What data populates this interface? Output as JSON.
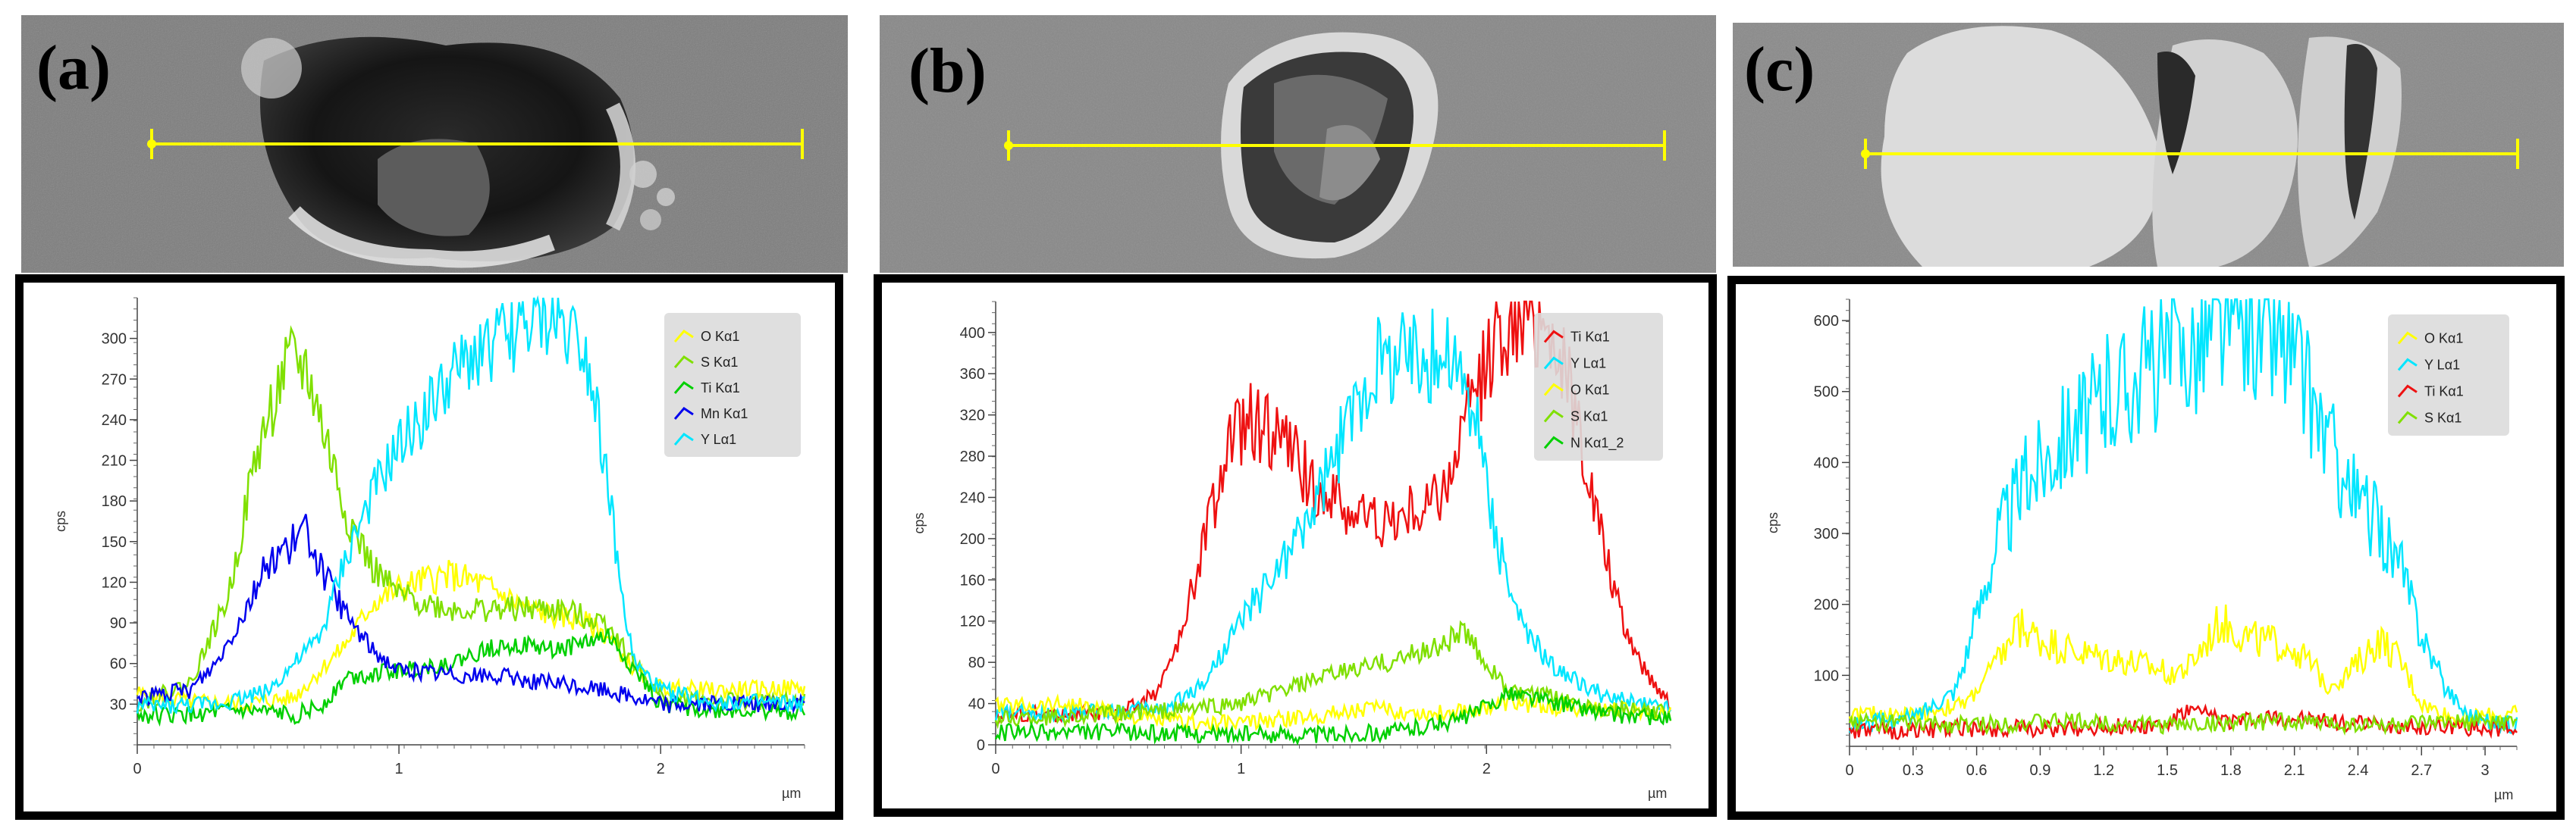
{
  "panels": [
    {
      "label": "(a)",
      "chart_data": {
        "type": "line",
        "xlabel": "µm",
        "ylabel": "cps",
        "xlim": [
          0,
          2.55
        ],
        "ylim": [
          0,
          330
        ],
        "xticks": [
          0,
          1,
          2
        ],
        "xtick_labels": [
          "0",
          "1",
          "2"
        ],
        "yticks": [
          30,
          60,
          90,
          120,
          150,
          180,
          210,
          240,
          270,
          300
        ],
        "ytick_labels": [
          "30",
          "60",
          "90",
          "120",
          "150",
          "180",
          "210",
          "240",
          "270",
          "300"
        ],
        "legend": [
          "O Kα1",
          "S Kα1",
          "Ti Kα1",
          "Mn Kα1",
          "Y Lα1"
        ],
        "legend_position": "top-right",
        "series": [
          {
            "name": "O Kα1",
            "color": "#ffff00",
            "x": [
              0,
              0.2,
              0.4,
              0.6,
              0.8,
              0.9,
              1.0,
              1.1,
              1.2,
              1.3,
              1.4,
              1.5,
              1.6,
              1.7,
              1.8,
              1.9,
              2.0,
              2.2,
              2.5
            ],
            "y": [
              38,
              32,
              30,
              35,
              75,
              105,
              115,
              122,
              125,
              120,
              110,
              100,
              95,
              92,
              80,
              55,
              42,
              40,
              42
            ]
          },
          {
            "name": "S Kα1",
            "color": "#80e000",
            "x": [
              0,
              0.2,
              0.35,
              0.45,
              0.55,
              0.6,
              0.65,
              0.7,
              0.8,
              0.9,
              1.0,
              1.2,
              1.4,
              1.6,
              1.8,
              1.9,
              2.0,
              2.2,
              2.5
            ],
            "y": [
              30,
              45,
              110,
              210,
              270,
              285,
              275,
              240,
              170,
              130,
              110,
              100,
              100,
              100,
              90,
              60,
              35,
              32,
              32
            ]
          },
          {
            "name": "Ti Kα1",
            "color": "#00d000",
            "x": [
              0,
              0.2,
              0.4,
              0.6,
              0.7,
              0.8,
              1.0,
              1.2,
              1.4,
              1.6,
              1.8,
              2.0,
              2.2,
              2.5
            ],
            "y": [
              22,
              22,
              25,
              22,
              28,
              50,
              55,
              60,
              75,
              70,
              80,
              30,
              25,
              25
            ]
          },
          {
            "name": "Mn Kα1",
            "color": "#0000ee",
            "x": [
              0,
              0.2,
              0.3,
              0.4,
              0.5,
              0.6,
              0.65,
              0.7,
              0.8,
              0.9,
              1.0,
              1.2,
              1.4,
              1.6,
              1.8,
              2.0,
              2.2,
              2.5
            ],
            "y": [
              35,
              40,
              60,
              95,
              135,
              150,
              158,
              130,
              95,
              70,
              55,
              52,
              50,
              45,
              40,
              30,
              30,
              30
            ]
          },
          {
            "name": "Y Lα1",
            "color": "#00e6ff",
            "x": [
              0,
              0.3,
              0.5,
              0.7,
              0.8,
              0.9,
              1.0,
              1.1,
              1.2,
              1.3,
              1.4,
              1.5,
              1.6,
              1.7,
              1.75,
              1.8,
              1.85,
              1.9,
              2.0,
              2.2,
              2.5
            ],
            "y": [
              28,
              30,
              40,
              80,
              140,
              185,
              220,
              245,
              270,
              290,
              300,
              310,
              315,
              300,
              260,
              190,
              110,
              60,
              40,
              32,
              30
            ]
          }
        ]
      }
    },
    {
      "label": "(b)",
      "chart_data": {
        "type": "line",
        "xlabel": "µm",
        "ylabel": "cps",
        "xlim": [
          0,
          2.75
        ],
        "ylim": [
          0,
          430
        ],
        "xticks": [
          0,
          1,
          2
        ],
        "xtick_labels": [
          "0",
          "1",
          "2"
        ],
        "yticks": [
          0,
          40,
          80,
          120,
          160,
          200,
          240,
          280,
          320,
          360,
          400
        ],
        "ytick_labels": [
          "0",
          "40",
          "80",
          "120",
          "160",
          "200",
          "240",
          "280",
          "320",
          "360",
          "400"
        ],
        "legend": [
          "Ti Kα1",
          "Y Lα1",
          "O Kα1",
          "S Kα1",
          "N Kα1_2"
        ],
        "legend_position": "top-right",
        "series": [
          {
            "name": "Ti Kα1",
            "color": "#ee1111",
            "x": [
              0,
              0.5,
              0.65,
              0.75,
              0.85,
              0.95,
              1.05,
              1.15,
              1.3,
              1.45,
              1.6,
              1.75,
              1.85,
              1.95,
              2.05,
              2.15,
              2.25,
              2.35,
              2.45,
              2.55,
              2.65,
              2.75
            ],
            "y": [
              30,
              30,
              50,
              100,
              200,
              290,
              315,
              300,
              250,
              225,
              215,
              230,
              260,
              340,
              400,
              420,
              410,
              340,
              220,
              120,
              70,
              40
            ]
          },
          {
            "name": "Y Lα1",
            "color": "#00e6ff",
            "x": [
              0,
              0.7,
              0.85,
              1.0,
              1.15,
              1.3,
              1.45,
              1.55,
              1.65,
              1.75,
              1.85,
              1.95,
              2.05,
              2.15,
              2.3,
              2.5,
              2.75
            ],
            "y": [
              30,
              35,
              60,
              120,
              170,
              230,
              320,
              370,
              380,
              375,
              380,
              320,
              190,
              110,
              70,
              45,
              35
            ]
          },
          {
            "name": "O Kα1",
            "color": "#ffff00",
            "x": [
              0,
              0.3,
              0.6,
              0.9,
              1.2,
              1.5,
              1.8,
              2.1,
              2.4,
              2.75
            ],
            "y": [
              38,
              40,
              25,
              20,
              25,
              35,
              30,
              40,
              35,
              32
            ]
          },
          {
            "name": "S Kα1",
            "color": "#80e000",
            "x": [
              0,
              0.5,
              0.8,
              1.0,
              1.2,
              1.4,
              1.6,
              1.8,
              1.9,
              2.0,
              2.1,
              2.3,
              2.5,
              2.75
            ],
            "y": [
              25,
              30,
              35,
              40,
              55,
              70,
              80,
              95,
              110,
              80,
              50,
              45,
              35,
              30
            ]
          },
          {
            "name": "N Kα1_2",
            "color": "#00d000",
            "x": [
              0,
              0.5,
              1.0,
              1.3,
              1.6,
              1.9,
              2.1,
              2.3,
              2.5,
              2.75
            ],
            "y": [
              12,
              12,
              10,
              10,
              12,
              25,
              50,
              40,
              30,
              25
            ]
          }
        ]
      }
    },
    {
      "label": "(c)",
      "chart_data": {
        "type": "line",
        "xlabel": "µm",
        "ylabel": "cps",
        "xlim": [
          0,
          3.15
        ],
        "ylim": [
          0,
          630
        ],
        "xticks": [
          0,
          0.3,
          0.6,
          0.9,
          1.2,
          1.5,
          1.8,
          2.1,
          2.4,
          2.7,
          3
        ],
        "xtick_labels": [
          "0",
          "0.3",
          "0.6",
          "0.9",
          "1.2",
          "1.5",
          "1.8",
          "2.1",
          "2.4",
          "2.7",
          "3"
        ],
        "yticks": [
          100,
          200,
          300,
          400,
          500,
          600
        ],
        "ytick_labels": [
          "100",
          "200",
          "300",
          "400",
          "500",
          "600"
        ],
        "legend": [
          "O Kα1",
          "Y Lα1",
          "Ti Kα1",
          "S Kα1"
        ],
        "legend_position": "top-right",
        "series": [
          {
            "name": "O Kα1",
            "color": "#ffff00",
            "x": [
              0,
              0.3,
              0.55,
              0.7,
              0.8,
              0.9,
              1.1,
              1.3,
              1.5,
              1.6,
              1.75,
              1.9,
              2.1,
              2.25,
              2.35,
              2.5,
              2.6,
              2.7,
              2.85,
              3.15
            ],
            "y": [
              45,
              45,
              60,
              120,
              170,
              150,
              130,
              120,
              105,
              110,
              175,
              150,
              140,
              90,
              100,
              150,
              120,
              60,
              40,
              45
            ]
          },
          {
            "name": "Y Lα1",
            "color": "#00e6ff",
            "x": [
              0,
              0.3,
              0.5,
              0.6,
              0.7,
              0.8,
              0.9,
              1.0,
              1.2,
              1.4,
              1.6,
              1.8,
              1.9,
              2.0,
              2.1,
              2.2,
              2.3,
              2.4,
              2.5,
              2.6,
              2.7,
              2.8,
              2.9,
              3.0,
              3.15
            ],
            "y": [
              30,
              40,
              80,
              180,
              300,
              360,
              400,
              440,
              490,
              530,
              560,
              600,
              590,
              580,
              540,
              470,
              400,
              340,
              310,
              250,
              160,
              90,
              50,
              35,
              30
            ]
          },
          {
            "name": "Ti Kα1",
            "color": "#ee1111",
            "x": [
              0,
              0.5,
              1.0,
              1.5,
              1.6,
              1.8,
              2.0,
              2.5,
              3.15
            ],
            "y": [
              20,
              25,
              25,
              30,
              50,
              35,
              40,
              30,
              25
            ]
          },
          {
            "name": "S Kα1",
            "color": "#80e000",
            "x": [
              0,
              0.5,
              1.0,
              1.5,
              2.0,
              2.5,
              3.15
            ],
            "y": [
              35,
              30,
              35,
              30,
              35,
              30,
              35
            ]
          }
        ]
      }
    }
  ]
}
